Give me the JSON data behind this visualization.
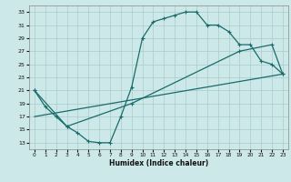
{
  "xlabel": "Humidex (Indice chaleur)",
  "ylabel": "",
  "bg_color": "#cce8e8",
  "grid_color": "#aacccc",
  "line_color": "#1a6b6b",
  "xlim": [
    -0.5,
    23.5
  ],
  "ylim": [
    12,
    34
  ],
  "yticks": [
    13,
    15,
    17,
    19,
    21,
    23,
    25,
    27,
    29,
    31,
    33
  ],
  "xticks": [
    0,
    1,
    2,
    3,
    4,
    5,
    6,
    7,
    8,
    9,
    10,
    11,
    12,
    13,
    14,
    15,
    16,
    17,
    18,
    19,
    20,
    21,
    22,
    23
  ],
  "series1_x": [
    0,
    1,
    2,
    3,
    4,
    5,
    6,
    7,
    8,
    9,
    10,
    11,
    12,
    13,
    14,
    15,
    16,
    17,
    18,
    19,
    20,
    21,
    22,
    23
  ],
  "series1_y": [
    21.0,
    18.5,
    17.0,
    15.5,
    14.5,
    13.2,
    13.0,
    13.0,
    17.0,
    21.5,
    29.0,
    31.5,
    32.0,
    32.5,
    33.0,
    33.0,
    31.0,
    31.0,
    30.0,
    28.0,
    28.0,
    25.5,
    25.0,
    23.5
  ],
  "series2_x": [
    0,
    3,
    9,
    19,
    22,
    23
  ],
  "series2_y": [
    21.0,
    15.5,
    19.0,
    27.0,
    28.0,
    23.5
  ],
  "series3_x": [
    0,
    23
  ],
  "series3_y": [
    17.0,
    23.5
  ]
}
